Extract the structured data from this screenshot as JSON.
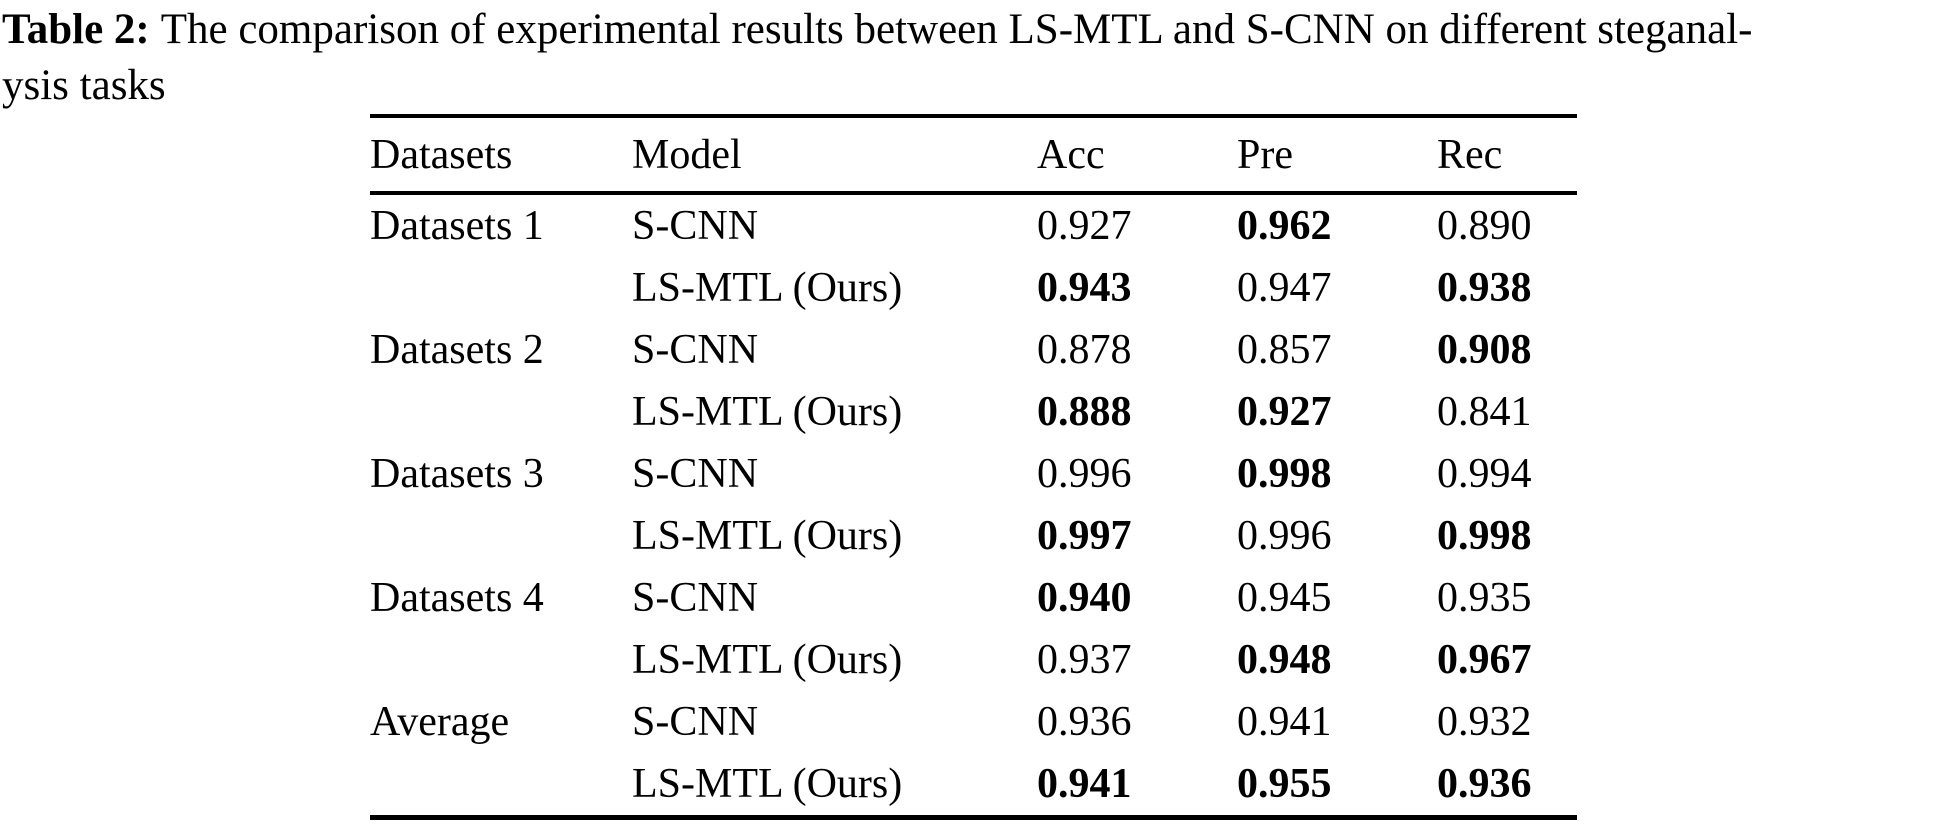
{
  "caption": {
    "label": "Table 2:",
    "line1_text": "The comparison of experimental results between LS-MTL and S-CNN on different steganal-",
    "line2_text": "ysis tasks"
  },
  "table": {
    "columns": [
      "Datasets",
      "Model",
      "Acc",
      "Pre",
      "Rec"
    ],
    "rows": [
      {
        "dataset": "Datasets 1",
        "model": "S-CNN",
        "acc": "0.927",
        "pre": "0.962",
        "rec": "0.890",
        "bold_cells": [
          "pre"
        ]
      },
      {
        "dataset": "",
        "model": "LS-MTL (Ours)",
        "acc": "0.943",
        "pre": "0.947",
        "rec": "0.938",
        "bold_cells": [
          "acc",
          "rec"
        ]
      },
      {
        "dataset": "Datasets 2",
        "model": "S-CNN",
        "acc": "0.878",
        "pre": "0.857",
        "rec": "0.908",
        "bold_cells": [
          "rec"
        ]
      },
      {
        "dataset": "",
        "model": "LS-MTL (Ours)",
        "acc": "0.888",
        "pre": "0.927",
        "rec": "0.841",
        "bold_cells": [
          "acc",
          "pre"
        ]
      },
      {
        "dataset": "Datasets 3",
        "model": "S-CNN",
        "acc": "0.996",
        "pre": "0.998",
        "rec": "0.994",
        "bold_cells": [
          "pre"
        ]
      },
      {
        "dataset": "",
        "model": "LS-MTL (Ours)",
        "acc": "0.997",
        "pre": "0.996",
        "rec": "0.998",
        "bold_cells": [
          "acc",
          "rec"
        ]
      },
      {
        "dataset": "Datasets 4",
        "model": "S-CNN",
        "acc": "0.940",
        "pre": "0.945",
        "rec": "0.935",
        "bold_cells": [
          "acc"
        ]
      },
      {
        "dataset": "",
        "model": "LS-MTL (Ours)",
        "acc": "0.937",
        "pre": "0.948",
        "rec": "0.967",
        "bold_cells": [
          "pre",
          "rec"
        ]
      },
      {
        "dataset": "Average",
        "model": "S-CNN",
        "acc": "0.936",
        "pre": "0.941",
        "rec": "0.932",
        "bold_cells": []
      },
      {
        "dataset": "",
        "model": "LS-MTL (Ours)",
        "acc": "0.941",
        "pre": "0.955",
        "rec": "0.936",
        "bold_cells": [
          "acc",
          "pre",
          "rec"
        ]
      }
    ]
  },
  "colors": {
    "text": "#000000",
    "background": "#ffffff",
    "rule": "#000000"
  }
}
